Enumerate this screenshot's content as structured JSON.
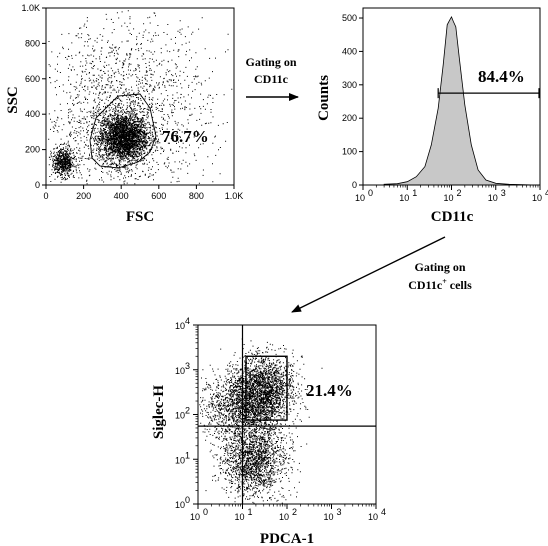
{
  "chart_data": [
    {
      "type": "scatter",
      "panel": "fsc-ssc",
      "xlabel": "FSC",
      "ylabel": "SSC",
      "xlim": [
        0,
        1000
      ],
      "ylim": [
        0,
        1000
      ],
      "x_tick_labels": [
        "0",
        "200",
        "400",
        "600",
        "800",
        "1.0K"
      ],
      "y_tick_labels": [
        "0",
        "200",
        "400",
        "600",
        "800",
        "1.0K"
      ],
      "x_tick_values": [
        0,
        200,
        400,
        600,
        800,
        1000
      ],
      "y_tick_values": [
        0,
        200,
        400,
        600,
        800,
        1000
      ],
      "populations": [
        {
          "cx": 410,
          "cy": 270,
          "sx": 65,
          "sy": 70,
          "weight": 0.55
        },
        {
          "cx": 90,
          "cy": 130,
          "sx": 30,
          "sy": 40,
          "weight": 0.12
        },
        {
          "cx": 420,
          "cy": 420,
          "sx": 220,
          "sy": 250,
          "weight": 0.33
        }
      ],
      "gate_label": "76.7%",
      "grid": false
    },
    {
      "type": "area",
      "panel": "cd11c-histogram",
      "xlabel": "CD11c",
      "ylabel": "Counts",
      "xscale": "log",
      "xlim": [
        1,
        10000
      ],
      "ylim": [
        0,
        530
      ],
      "x_tick_labels": [
        "10",
        "10",
        "10",
        "10",
        "10"
      ],
      "x_tick_exponents": [
        "0",
        "1",
        "2",
        "3",
        "4"
      ],
      "x_tick_values": [
        1,
        10,
        100,
        1000,
        10000
      ],
      "y_tick_labels": [
        "0",
        "100",
        "200",
        "300",
        "400",
        "500"
      ],
      "y_tick_values": [
        0,
        100,
        200,
        300,
        400,
        500
      ],
      "x": [
        3,
        6,
        10,
        16,
        25,
        35,
        50,
        65,
        80,
        90,
        100,
        110,
        125,
        150,
        200,
        280,
        400,
        600,
        1000,
        2000,
        4000,
        8000
      ],
      "y": [
        2,
        4,
        10,
        25,
        55,
        120,
        230,
        360,
        480,
        500,
        495,
        498,
        470,
        380,
        240,
        120,
        45,
        15,
        5,
        2,
        1,
        0
      ],
      "gate_label": "84.4%",
      "gate_range": [
        50,
        10000
      ],
      "gate_y": 275,
      "grid": false
    },
    {
      "type": "scatter",
      "panel": "pdca1-siglech",
      "xlabel": "PDCA-1",
      "ylabel": "Siglec-H",
      "xscale": "log",
      "yscale": "log",
      "xlim": [
        1,
        10000
      ],
      "ylim": [
        1,
        10000
      ],
      "x_tick_labels": [
        "10",
        "10",
        "10",
        "10",
        "10"
      ],
      "x_tick_exponents": [
        "0",
        "1",
        "2",
        "3",
        "4"
      ],
      "x_tick_values": [
        1,
        10,
        100,
        1000,
        10000
      ],
      "y_tick_labels": [
        "10",
        "10",
        "10",
        "10",
        "10"
      ],
      "y_tick_exponents": [
        "0",
        "1",
        "2",
        "3",
        "4"
      ],
      "y_tick_values": [
        1,
        10,
        100,
        1000,
        10000
      ],
      "populations": [
        {
          "cx": 1.45,
          "cy": 2.6,
          "sx": 0.35,
          "sy": 0.35,
          "weight": 0.38
        },
        {
          "cx": 1.25,
          "cy": 1.0,
          "sx": 0.35,
          "sy": 0.4,
          "weight": 0.34
        },
        {
          "cx": 1.0,
          "cy": 2.15,
          "sx": 0.45,
          "sy": 0.35,
          "weight": 0.28
        }
      ],
      "quadrant_x": 10,
      "quadrant_y": 55,
      "gate_box": {
        "x0": 12,
        "x1": 100,
        "y0": 75,
        "y1": 2000
      },
      "gate_label": "21.4%",
      "grid": false
    }
  ],
  "annotations": {
    "step1_line1": "Gating on",
    "step1_line2": "CD11c",
    "step2_line1": "Gating on",
    "step2_line2_main": "CD11c",
    "step2_line2_sup": "+",
    "step2_line2_rest": " cells"
  }
}
